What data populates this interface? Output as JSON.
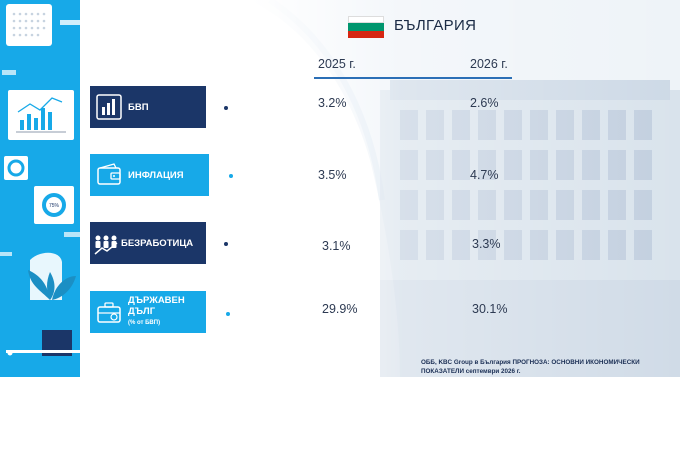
{
  "header": {
    "country": "БЪЛГАРИЯ",
    "flag_colors": [
      "#ffffff",
      "#00966e",
      "#d62612"
    ]
  },
  "chart_data": {
    "type": "table",
    "columns": [
      "2025 г.",
      "2026 г."
    ],
    "rows": [
      {
        "label": "БВП",
        "sub": "",
        "values": [
          "3.2%",
          "2.6%"
        ],
        "style": "dark",
        "icon": "bar-chart-icon"
      },
      {
        "label": "ИНФЛАЦИЯ",
        "sub": "",
        "values": [
          "3.5%",
          "4.7%"
        ],
        "style": "light",
        "icon": "wallet-icon"
      },
      {
        "label": "БЕЗРАБОТИЦА",
        "sub": "",
        "values": [
          "3.1%",
          "3.3%"
        ],
        "style": "dark",
        "icon": "people-trend-icon"
      },
      {
        "label": "ДЪРЖАВЕН ДЪЛГ",
        "sub": "(% от БВП)",
        "values": [
          "29.9%",
          "30.1%"
        ],
        "style": "light",
        "icon": "briefcase-icon"
      }
    ]
  },
  "footer": {
    "source": "ОББ, KBC Group в България ПРОГНОЗА: ОСНОВНИ ИКОНОМИЧЕСКИ ПОКАЗАТЕЛИ септември 2026 г."
  },
  "colors": {
    "dark_box": "#1b3668",
    "light_box": "#17a9e8",
    "accent_line": "#2b6fb6"
  }
}
